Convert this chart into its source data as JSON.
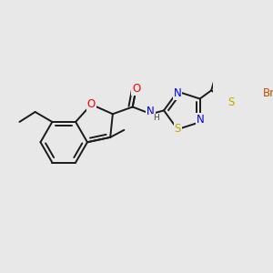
{
  "bg_color": "#e8e8e8",
  "bond_color": "#1a1a1a",
  "bond_width": 1.4,
  "atom_colors": {
    "O": "#ff0000",
    "N": "#0000ee",
    "S_thia": "#bbaa00",
    "S_thio": "#bbaa00",
    "Br": "#c05000",
    "H": "#444444"
  },
  "font_size": 8.5
}
